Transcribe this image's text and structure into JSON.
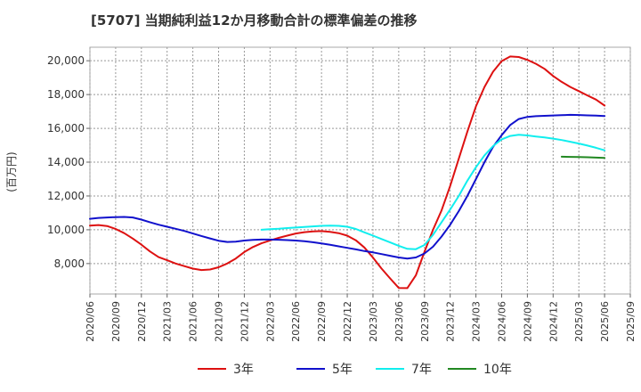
{
  "chart_data": {
    "type": "line",
    "title": "[5707]  当期純利益12か月移動合計の標準偏差の推移",
    "xlabel": "",
    "ylabel": "(百万円)",
    "ylim": [
      6200,
      20800
    ],
    "yticks": [
      8000,
      10000,
      12000,
      14000,
      16000,
      18000,
      20000
    ],
    "ytick_labels": [
      "8,000",
      "10,000",
      "12,000",
      "14,000",
      "16,000",
      "18,000",
      "20,000"
    ],
    "x_start": "2020/06",
    "x_end": "2025/09",
    "xtick_labels": [
      "2020/06",
      "2020/09",
      "2020/12",
      "2021/03",
      "2021/06",
      "2021/09",
      "2021/12",
      "2022/03",
      "2022/06",
      "2022/09",
      "2022/12",
      "2023/03",
      "2023/06",
      "2023/09",
      "2023/12",
      "2024/03",
      "2024/06",
      "2024/09",
      "2024/12",
      "2025/03",
      "2025/06",
      "2025/09"
    ],
    "grid": true,
    "legend_position": "bottom",
    "series": [
      {
        "name": "3年",
        "color": "#dd1111",
        "x": [
          "2020/06",
          "2020/07",
          "2020/08",
          "2020/09",
          "2020/10",
          "2020/11",
          "2020/12",
          "2021/01",
          "2021/02",
          "2021/03",
          "2021/04",
          "2021/05",
          "2021/06",
          "2021/07",
          "2021/08",
          "2021/09",
          "2021/10",
          "2021/11",
          "2021/12",
          "2022/01",
          "2022/02",
          "2022/03",
          "2022/04",
          "2022/05",
          "2022/06",
          "2022/07",
          "2022/08",
          "2022/09",
          "2022/10",
          "2022/11",
          "2022/12",
          "2023/01",
          "2023/02",
          "2023/03",
          "2023/04",
          "2023/05",
          "2023/06",
          "2023/07",
          "2023/08",
          "2023/09",
          "2023/10",
          "2023/11",
          "2023/12",
          "2024/01",
          "2024/02",
          "2024/03",
          "2024/04",
          "2024/05",
          "2024/06",
          "2024/07",
          "2024/08",
          "2024/09",
          "2024/10",
          "2024/11",
          "2024/12",
          "2025/01",
          "2025/02",
          "2025/03",
          "2025/04",
          "2025/05",
          "2025/06"
        ],
        "values": [
          10250,
          10280,
          10220,
          10050,
          9800,
          9480,
          9120,
          8720,
          8380,
          8200,
          8000,
          7850,
          7700,
          7620,
          7650,
          7780,
          8000,
          8300,
          8680,
          8980,
          9200,
          9370,
          9520,
          9650,
          9780,
          9860,
          9900,
          9920,
          9880,
          9800,
          9650,
          9380,
          8950,
          8350,
          7700,
          7120,
          6560,
          6550,
          7300,
          8700,
          10000,
          11150,
          12600,
          14200,
          15800,
          17300,
          18450,
          19350,
          19980,
          20250,
          20220,
          20050,
          19820,
          19520,
          19100,
          18750,
          18450,
          18200,
          17950,
          17700,
          17350
        ]
      },
      {
        "name": "5年",
        "color": "#1111cc",
        "x": [
          "2020/06",
          "2020/07",
          "2020/08",
          "2020/09",
          "2020/10",
          "2020/11",
          "2020/12",
          "2021/01",
          "2021/02",
          "2021/03",
          "2021/04",
          "2021/05",
          "2021/06",
          "2021/07",
          "2021/08",
          "2021/09",
          "2021/10",
          "2021/11",
          "2021/12",
          "2022/01",
          "2022/02",
          "2022/03",
          "2022/04",
          "2022/05",
          "2022/06",
          "2022/07",
          "2022/08",
          "2022/09",
          "2022/10",
          "2022/11",
          "2022/12",
          "2023/01",
          "2023/02",
          "2023/03",
          "2023/04",
          "2023/05",
          "2023/06",
          "2023/07",
          "2023/08",
          "2023/09",
          "2023/10",
          "2023/11",
          "2023/12",
          "2024/01",
          "2024/02",
          "2024/03",
          "2024/04",
          "2024/05",
          "2024/06",
          "2024/07",
          "2024/08",
          "2024/09",
          "2024/10",
          "2024/11",
          "2024/12",
          "2025/01",
          "2025/02",
          "2025/03",
          "2025/04",
          "2025/05",
          "2025/06"
        ],
        "values": [
          10650,
          10700,
          10730,
          10750,
          10760,
          10730,
          10600,
          10450,
          10300,
          10180,
          10060,
          9930,
          9780,
          9630,
          9490,
          9350,
          9280,
          9300,
          9360,
          9400,
          9420,
          9420,
          9410,
          9390,
          9360,
          9320,
          9260,
          9190,
          9110,
          9020,
          8930,
          8840,
          8740,
          8660,
          8560,
          8460,
          8360,
          8300,
          8360,
          8600,
          9000,
          9600,
          10300,
          11100,
          12000,
          13000,
          14000,
          14900,
          15600,
          16200,
          16550,
          16680,
          16720,
          16740,
          16760,
          16780,
          16800,
          16790,
          16770,
          16750,
          16730
        ]
      },
      {
        "name": "7年",
        "color": "#11eeee",
        "x": [
          "2022/02",
          "2022/03",
          "2022/04",
          "2022/05",
          "2022/06",
          "2022/07",
          "2022/08",
          "2022/09",
          "2022/10",
          "2022/11",
          "2022/12",
          "2023/01",
          "2023/02",
          "2023/03",
          "2023/04",
          "2023/05",
          "2023/06",
          "2023/07",
          "2023/08",
          "2023/09",
          "2023/10",
          "2023/11",
          "2023/12",
          "2024/01",
          "2024/02",
          "2024/03",
          "2024/04",
          "2024/05",
          "2024/06",
          "2024/07",
          "2024/08",
          "2024/09",
          "2024/10",
          "2024/11",
          "2024/12",
          "2025/01",
          "2025/02",
          "2025/03",
          "2025/04",
          "2025/05",
          "2025/06"
        ],
        "values": [
          10000,
          10030,
          10060,
          10100,
          10130,
          10170,
          10200,
          10230,
          10250,
          10230,
          10180,
          10050,
          9850,
          9650,
          9450,
          9250,
          9050,
          8870,
          8850,
          9100,
          9700,
          10450,
          11200,
          12000,
          12900,
          13700,
          14400,
          14950,
          15350,
          15550,
          15620,
          15580,
          15520,
          15460,
          15390,
          15310,
          15210,
          15100,
          14980,
          14850,
          14700
        ]
      },
      {
        "name": "10年",
        "color": "#228822",
        "x": [
          "2025/01",
          "2025/02",
          "2025/03",
          "2025/04",
          "2025/05",
          "2025/06"
        ],
        "values": [
          14320,
          14310,
          14300,
          14290,
          14270,
          14250
        ]
      }
    ]
  }
}
